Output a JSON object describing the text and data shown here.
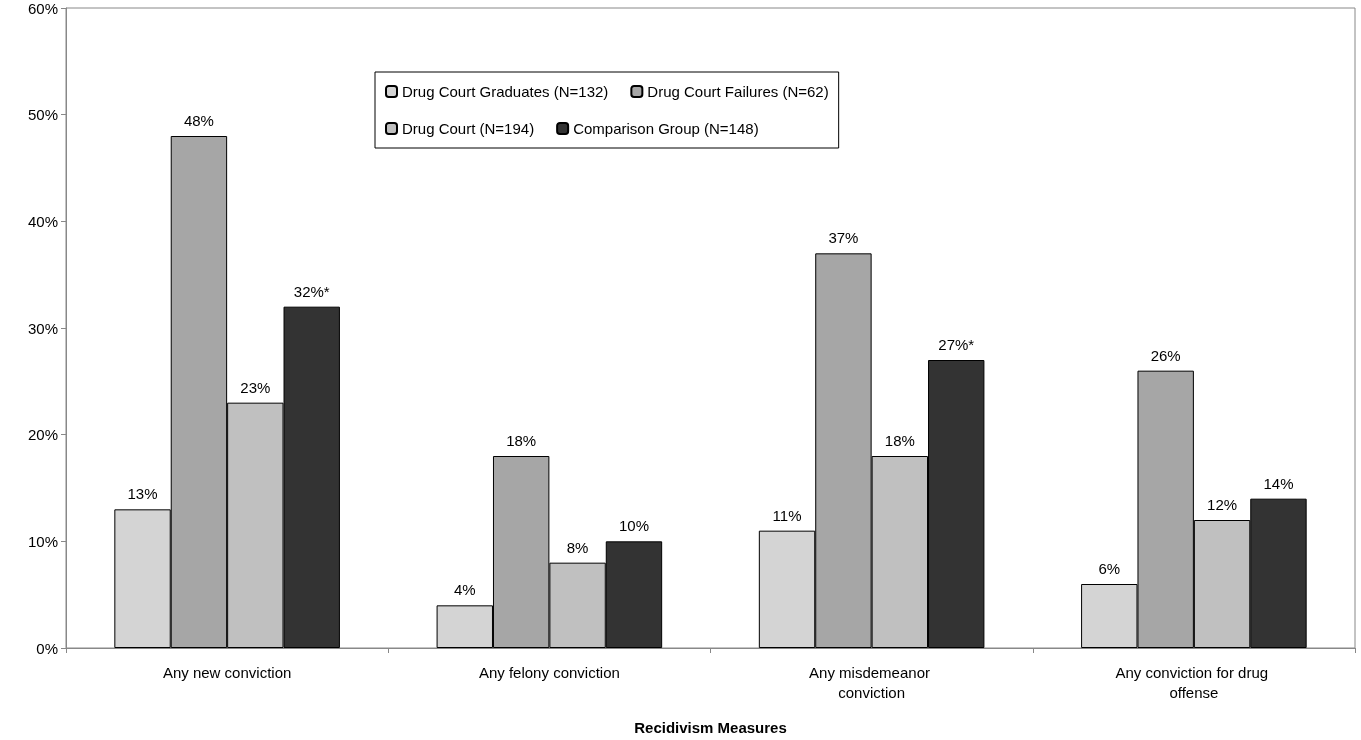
{
  "chart_data": {
    "type": "bar",
    "xlabel": "Recidivism Measures",
    "categories": [
      "Any new conviction",
      "Any felony conviction",
      "Any misdemeanor conviction",
      "Any conviction for drug offense"
    ],
    "series": [
      {
        "name": "Drug Court Graduates (N=132)",
        "color": "#d4d4d4",
        "values": [
          13,
          4,
          11,
          6
        ],
        "value_labels": [
          "13%",
          "4%",
          "11%",
          "6%"
        ]
      },
      {
        "name": "Drug Court Failures (N=62)",
        "color": "#a6a6a6",
        "values": [
          48,
          18,
          37,
          26
        ],
        "value_labels": [
          "48%",
          "18%",
          "37%",
          "26%"
        ]
      },
      {
        "name": "Drug Court (N=194)",
        "color": "#c0c0c0",
        "values": [
          23,
          8,
          18,
          12
        ],
        "value_labels": [
          "23%",
          "8%",
          "18%",
          "12%"
        ]
      },
      {
        "name": "Comparison Group (N=148)",
        "color": "#333333",
        "values": [
          32,
          10,
          27,
          14
        ],
        "value_labels": [
          "32%*",
          "10%",
          "27%*",
          "14%"
        ]
      }
    ],
    "ylim": [
      0,
      60
    ],
    "yticks": [
      {
        "value": 0,
        "label": "0%"
      },
      {
        "value": 10,
        "label": "10%"
      },
      {
        "value": 20,
        "label": "20%"
      },
      {
        "value": 30,
        "label": "30%"
      },
      {
        "value": 40,
        "label": "40%"
      },
      {
        "value": 50,
        "label": "50%"
      },
      {
        "value": 60,
        "label": "60%"
      }
    ],
    "grid": false,
    "legend": "top"
  }
}
